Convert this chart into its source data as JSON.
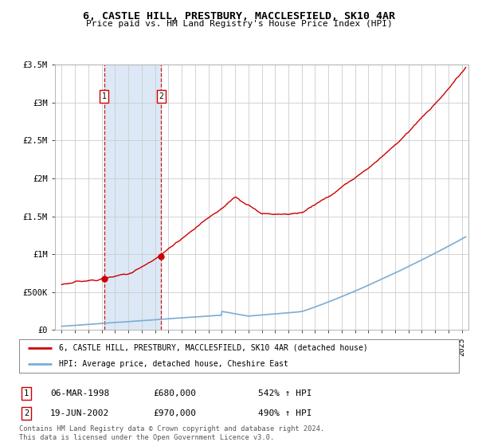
{
  "title1": "6, CASTLE HILL, PRESTBURY, MACCLESFIELD, SK10 4AR",
  "title2": "Price paid vs. HM Land Registry's House Price Index (HPI)",
  "legend_line1": "6, CASTLE HILL, PRESTBURY, MACCLESFIELD, SK10 4AR (detached house)",
  "legend_line2": "HPI: Average price, detached house, Cheshire East",
  "footnote1": "Contains HM Land Registry data © Crown copyright and database right 2024.",
  "footnote2": "This data is licensed under the Open Government Licence v3.0.",
  "annotation1_date": "06-MAR-1998",
  "annotation1_price": "£680,000",
  "annotation1_hpi": "542% ↑ HPI",
  "annotation2_date": "19-JUN-2002",
  "annotation2_price": "£970,000",
  "annotation2_hpi": "490% ↑ HPI",
  "sale1_x": 1998.18,
  "sale1_y": 680000,
  "sale2_x": 2002.47,
  "sale2_y": 970000,
  "hpi_color": "#7aadd4",
  "price_color": "#cc0000",
  "sale_dot_color": "#cc0000",
  "annotation_box_color": "#cc0000",
  "grid_color": "#cccccc",
  "background_color": "#ffffff",
  "plot_bg_color": "#ffffff",
  "shade_color": "#dce8f5",
  "ylim_max": 3500000,
  "yticks": [
    0,
    500000,
    1000000,
    1500000,
    2000000,
    2500000,
    3000000,
    3500000
  ],
  "ytick_labels": [
    "£0",
    "£500K",
    "£1M",
    "£1.5M",
    "£2M",
    "£2.5M",
    "£3M",
    "£3.5M"
  ],
  "xmin": 1994.5,
  "xmax": 2025.5
}
